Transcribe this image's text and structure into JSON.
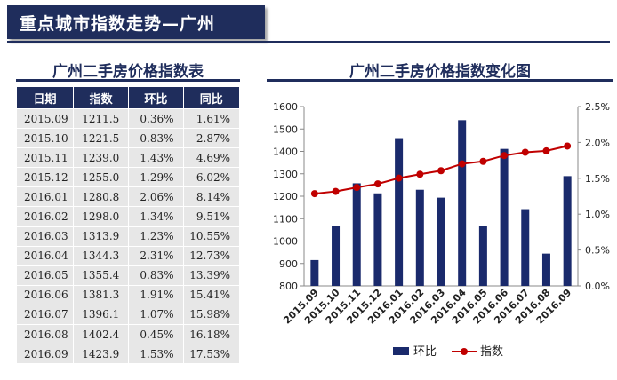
{
  "header": {
    "title": "重点城市指数走势—广州"
  },
  "table": {
    "title": "广州二手房价格指数表",
    "columns": [
      "日期",
      "指数",
      "环比",
      "同比"
    ],
    "rows": [
      [
        "2015.09",
        "1211.5",
        "0.36%",
        "1.61%"
      ],
      [
        "2015.10",
        "1221.5",
        "0.83%",
        "2.87%"
      ],
      [
        "2015.11",
        "1239.0",
        "1.43%",
        "4.69%"
      ],
      [
        "2015.12",
        "1255.0",
        "1.29%",
        "6.02%"
      ],
      [
        "2016.01",
        "1280.8",
        "2.06%",
        "8.14%"
      ],
      [
        "2016.02",
        "1298.0",
        "1.34%",
        "9.51%"
      ],
      [
        "2016.03",
        "1313.9",
        "1.23%",
        "10.55%"
      ],
      [
        "2016.04",
        "1344.3",
        "2.31%",
        "12.73%"
      ],
      [
        "2016.05",
        "1355.4",
        "0.83%",
        "13.39%"
      ],
      [
        "2016.06",
        "1381.3",
        "1.91%",
        "15.41%"
      ],
      [
        "2016.07",
        "1396.1",
        "1.07%",
        "15.98%"
      ],
      [
        "2016.08",
        "1402.4",
        "0.45%",
        "16.18%"
      ],
      [
        "2016.09",
        "1423.9",
        "1.53%",
        "17.53%"
      ]
    ]
  },
  "chart_data": {
    "type": "bar",
    "title": "广州二手房价格指数变化图",
    "categories": [
      "2015.09",
      "2015.10",
      "2015.11",
      "2015.12",
      "2016.01",
      "2016.02",
      "2016.03",
      "2016.04",
      "2016.05",
      "2016.06",
      "2016.07",
      "2016.08",
      "2016.09"
    ],
    "series": [
      {
        "name": "环比",
        "type": "bar",
        "axis": "right",
        "color": "#1a2a6c",
        "values": [
          0.36,
          0.83,
          1.43,
          1.29,
          2.06,
          1.34,
          1.23,
          2.31,
          0.83,
          1.91,
          1.07,
          0.45,
          1.53
        ]
      },
      {
        "name": "指数",
        "type": "line",
        "axis": "left",
        "color": "#c00000",
        "values": [
          1211.5,
          1221.5,
          1239.0,
          1255.0,
          1280.8,
          1298.0,
          1313.9,
          1344.3,
          1355.4,
          1381.3,
          1396.1,
          1402.4,
          1423.9
        ]
      }
    ],
    "ylim_left": [
      800,
      1600
    ],
    "yticks_left": [
      "800",
      "900",
      "1000",
      "1100",
      "1200",
      "1300",
      "1400",
      "1500",
      "1600"
    ],
    "ylim_right": [
      0,
      2.5
    ],
    "yticks_right": [
      "0.0%",
      "0.5%",
      "1.0%",
      "1.5%",
      "2.0%",
      "2.5%"
    ],
    "legend": "bottom",
    "grid": false
  }
}
